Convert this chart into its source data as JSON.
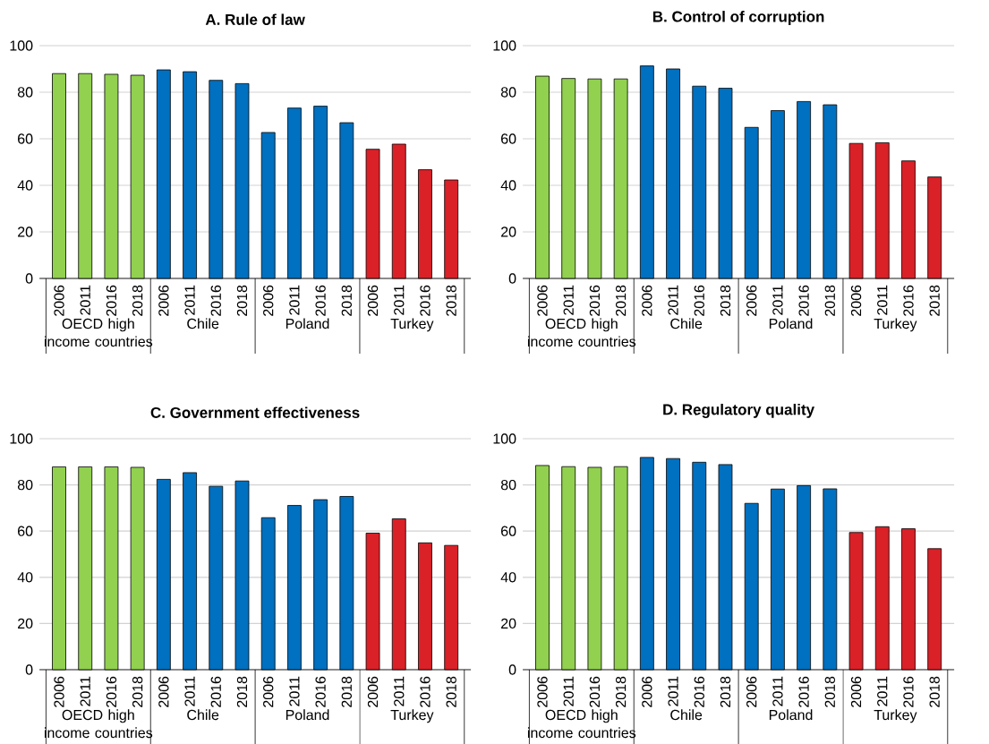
{
  "chart_data": [
    {
      "type": "bar",
      "title": "A. Rule of law",
      "categories": [
        "2006",
        "2011",
        "2016",
        "2018",
        "2006",
        "2011",
        "2016",
        "2018",
        "2006",
        "2011",
        "2016",
        "2018",
        "2006",
        "2011",
        "2016",
        "2018"
      ],
      "ylim": [
        0,
        100
      ],
      "yticks": [
        0,
        20,
        40,
        60,
        80,
        100
      ],
      "grid": "y",
      "series": [
        {
          "name": "OECD high income countries",
          "color": "#92d050",
          "values": [
            88.0,
            88.0,
            87.7,
            87.3,
            null,
            null,
            null,
            null,
            null,
            null,
            null,
            null,
            null,
            null,
            null,
            null
          ]
        },
        {
          "name": "Chile",
          "color": "#0070c0",
          "values": [
            null,
            null,
            null,
            null,
            89.6,
            88.8,
            85.1,
            83.7,
            null,
            null,
            null,
            null,
            null,
            null,
            null,
            null
          ]
        },
        {
          "name": "Poland",
          "color": "#0070c0",
          "values": [
            null,
            null,
            null,
            null,
            null,
            null,
            null,
            null,
            62.7,
            73.2,
            74.0,
            66.9,
            null,
            null,
            null,
            null
          ]
        },
        {
          "name": "Turkey",
          "color": "#da2128",
          "values": [
            null,
            null,
            null,
            null,
            null,
            null,
            null,
            null,
            null,
            null,
            null,
            null,
            55.5,
            57.7,
            46.7,
            42.3
          ]
        }
      ]
    },
    {
      "type": "bar",
      "title": "B. Control of corruption",
      "categories": [
        "2006",
        "2011",
        "2016",
        "2018",
        "2006",
        "2011",
        "2016",
        "2018",
        "2006",
        "2011",
        "2016",
        "2018",
        "2006",
        "2011",
        "2016",
        "2018"
      ],
      "ylim": [
        0,
        100
      ],
      "yticks": [
        0,
        20,
        40,
        60,
        80,
        100
      ],
      "grid": "y",
      "series": [
        {
          "name": "OECD high income countries",
          "color": "#92d050",
          "values": [
            86.9,
            85.9,
            85.7,
            85.7,
            null,
            null,
            null,
            null,
            null,
            null,
            null,
            null,
            null,
            null,
            null,
            null
          ]
        },
        {
          "name": "Chile",
          "color": "#0070c0",
          "values": [
            null,
            null,
            null,
            null,
            91.3,
            90.0,
            82.6,
            81.7,
            null,
            null,
            null,
            null,
            null,
            null,
            null,
            null
          ]
        },
        {
          "name": "Poland",
          "color": "#0070c0",
          "values": [
            null,
            null,
            null,
            null,
            null,
            null,
            null,
            null,
            64.9,
            72.1,
            76.0,
            74.6,
            null,
            null,
            null,
            null
          ]
        },
        {
          "name": "Turkey",
          "color": "#da2128",
          "values": [
            null,
            null,
            null,
            null,
            null,
            null,
            null,
            null,
            null,
            null,
            null,
            null,
            58.0,
            58.3,
            50.5,
            43.6
          ]
        }
      ]
    },
    {
      "type": "bar",
      "title": "C. Government effectiveness",
      "categories": [
        "2006",
        "2011",
        "2016",
        "2018",
        "2006",
        "2011",
        "2016",
        "2018",
        "2006",
        "2011",
        "2016",
        "2018",
        "2006",
        "2011",
        "2016",
        "2018"
      ],
      "ylim": [
        0,
        100
      ],
      "yticks": [
        0,
        20,
        40,
        60,
        80,
        100
      ],
      "grid": "y",
      "series": [
        {
          "name": "OECD high income countries",
          "color": "#92d050",
          "values": [
            87.8,
            87.8,
            87.8,
            87.6,
            null,
            null,
            null,
            null,
            null,
            null,
            null,
            null,
            null,
            null,
            null,
            null
          ]
        },
        {
          "name": "Chile",
          "color": "#0070c0",
          "values": [
            null,
            null,
            null,
            null,
            82.4,
            85.3,
            79.4,
            81.7,
            null,
            null,
            null,
            null,
            null,
            null,
            null,
            null
          ]
        },
        {
          "name": "Poland",
          "color": "#0070c0",
          "values": [
            null,
            null,
            null,
            null,
            null,
            null,
            null,
            null,
            65.8,
            71.1,
            73.6,
            75.0,
            null,
            null,
            null,
            null
          ]
        },
        {
          "name": "Turkey",
          "color": "#da2128",
          "values": [
            null,
            null,
            null,
            null,
            null,
            null,
            null,
            null,
            null,
            null,
            null,
            null,
            59.1,
            65.3,
            54.9,
            53.8
          ]
        }
      ]
    },
    {
      "type": "bar",
      "title": "D. Regulatory quality",
      "categories": [
        "2006",
        "2011",
        "2016",
        "2018",
        "2006",
        "2011",
        "2016",
        "2018",
        "2006",
        "2011",
        "2016",
        "2018",
        "2006",
        "2011",
        "2016",
        "2018"
      ],
      "ylim": [
        0,
        100
      ],
      "yticks": [
        0,
        20,
        40,
        60,
        80,
        100
      ],
      "grid": "y",
      "series": [
        {
          "name": "OECD high income countries",
          "color": "#92d050",
          "values": [
            88.4,
            87.9,
            87.6,
            87.9,
            null,
            null,
            null,
            null,
            null,
            null,
            null,
            null,
            null,
            null,
            null,
            null
          ]
        },
        {
          "name": "Chile",
          "color": "#0070c0",
          "values": [
            null,
            null,
            null,
            null,
            91.9,
            91.4,
            89.8,
            88.8,
            null,
            null,
            null,
            null,
            null,
            null,
            null,
            null
          ]
        },
        {
          "name": "Poland",
          "color": "#0070c0",
          "values": [
            null,
            null,
            null,
            null,
            null,
            null,
            null,
            null,
            72.0,
            78.2,
            79.7,
            78.3,
            null,
            null,
            null,
            null
          ]
        },
        {
          "name": "Turkey",
          "color": "#da2128",
          "values": [
            null,
            null,
            null,
            null,
            null,
            null,
            null,
            null,
            null,
            null,
            null,
            null,
            59.4,
            61.9,
            61.0,
            52.4
          ]
        }
      ]
    }
  ]
}
